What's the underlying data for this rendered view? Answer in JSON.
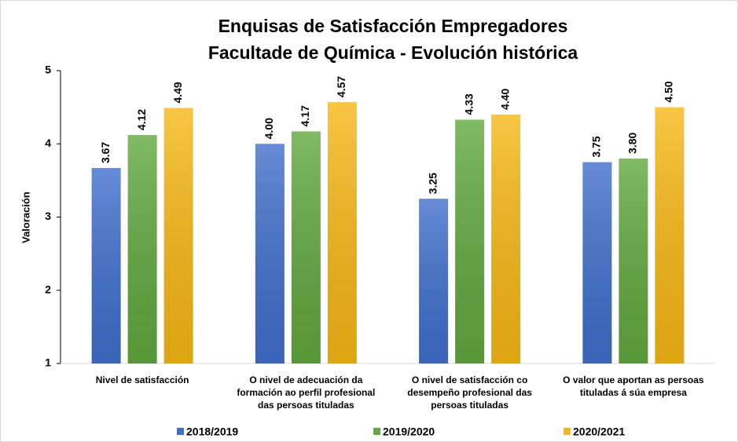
{
  "chart_data": {
    "type": "bar",
    "title": [
      "Enquisas de Satisfacción Empregadores",
      "Facultade de Química - Evolución histórica"
    ],
    "y_label": "Valoración",
    "categories": [
      "Nivel de satisfacción",
      "O nivel de adecuación da formación ao perfil profesional das persoas tituladas",
      "O nivel de satisfacción co desempeño profesional das persoas tituladas",
      "O valor que aportan as persoas tituladas á súa empresa"
    ],
    "series": [
      {
        "name": "2018/2019",
        "color": "#3f6fcc",
        "values": [
          3.67,
          4.0,
          3.25,
          3.75
        ],
        "value_labels": [
          "3.67",
          "4.00",
          "3.25",
          "3.75"
        ]
      },
      {
        "name": "2019/2020",
        "color": "#62a83f",
        "values": [
          4.12,
          4.17,
          4.33,
          3.8
        ],
        "value_labels": [
          "4.12",
          "4.17",
          "4.33",
          "3.80"
        ]
      },
      {
        "name": "2020/2021",
        "color": "#f7b815",
        "values": [
          4.49,
          4.57,
          4.4,
          4.5
        ],
        "value_labels": [
          "4.49",
          "4.57",
          "4.40",
          "4.50"
        ]
      }
    ],
    "ylim": [
      1,
      5
    ],
    "yticks": [
      1,
      2,
      3,
      4,
      5
    ],
    "grid": false,
    "legend": "bottom"
  }
}
